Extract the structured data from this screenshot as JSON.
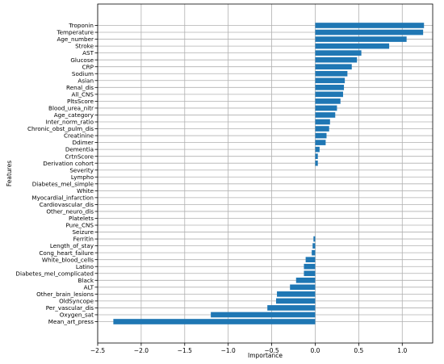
{
  "chart_data": {
    "type": "bar",
    "orientation": "horizontal",
    "title": "",
    "xlabel": "Importance",
    "ylabel": "Features",
    "xlim": [
      -2.5,
      1.35
    ],
    "xticks": [
      -2.5,
      -2.0,
      -1.5,
      -1.0,
      -0.5,
      0.0,
      0.5,
      1.0
    ],
    "xtick_labels": [
      "−2.5",
      "−2.0",
      "−1.5",
      "−1.0",
      "−0.5",
      "0.0",
      "0.5",
      "1.0"
    ],
    "grid": true,
    "bar_color": "#1f77b4",
    "categories": [
      "Troponin",
      "Temperature",
      "Age_number",
      "Stroke",
      "AST",
      "Glucose",
      "CRP",
      "Sodium",
      "Asian",
      "Renal_dis",
      "All_CNS",
      "PltsScore",
      "Blood_urea_nitr",
      "Age_category",
      "Inter_norm_ratio",
      "Chronic_obst_pulm_dis",
      "Creatinine",
      "Ddimer",
      "Dementia",
      "CrtnScore",
      "Derivation cohort",
      "Severity",
      "Lympho",
      "Diabetes_mel_simple",
      "White",
      "Myocardial_infarction",
      "Cardiovascular_dis",
      "Other_neuro_dis",
      "Platelets",
      "Pure_CNS",
      "Seizure",
      "Ferritin",
      "Length_of_stay",
      "Cong_heart_failure",
      "White_blood_cells",
      "Latino",
      "Diabetes_mel_complicated",
      "Black",
      "ALT",
      "Other_brain_lesions",
      "OldSyncope",
      "Per_vascular_dis",
      "Oxygen_sat",
      "Mean_art_press"
    ],
    "values": [
      1.25,
      1.24,
      1.05,
      0.85,
      0.53,
      0.48,
      0.42,
      0.37,
      0.34,
      0.33,
      0.32,
      0.29,
      0.25,
      0.23,
      0.17,
      0.16,
      0.13,
      0.12,
      0.05,
      0.03,
      0.03,
      0.0,
      0.0,
      0.0,
      0.0,
      0.0,
      0.0,
      0.0,
      0.0,
      0.0,
      0.0,
      -0.02,
      -0.03,
      -0.04,
      -0.11,
      -0.13,
      -0.13,
      -0.22,
      -0.29,
      -0.44,
      -0.45,
      -0.55,
      -1.2,
      -2.32
    ]
  }
}
